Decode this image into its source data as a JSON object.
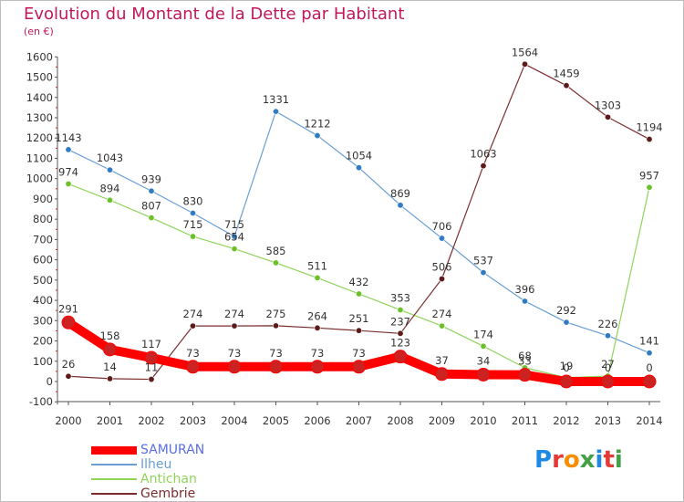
{
  "header": {
    "title": "Evolution du Montant de la Dette par Habitant",
    "unit": "(en €)"
  },
  "logo": {
    "text": "Proxiti",
    "letter_colors": [
      "#1e88e5",
      "#e53935",
      "#fb8c00",
      "#43a047",
      "#1e88e5",
      "#e53935",
      "#43a047"
    ]
  },
  "chart_data": {
    "type": "line",
    "title": "Evolution du Montant de la Dette par Habitant",
    "ylabel": "(en €)",
    "xlabel": "",
    "x": [
      "2000",
      "2001",
      "2002",
      "2003",
      "2004",
      "2005",
      "2006",
      "2007",
      "2008",
      "2009",
      "2010",
      "2011",
      "2012",
      "2013",
      "2014"
    ],
    "ylim": [
      -100,
      1600
    ],
    "yticks": [
      -100,
      0,
      100,
      200,
      300,
      400,
      500,
      600,
      700,
      800,
      900,
      1000,
      1100,
      1200,
      1300,
      1400,
      1500,
      1600
    ],
    "grid": false,
    "legend_position": "bottom-left",
    "series": [
      {
        "name": "SAMURAN",
        "color": "#ff0000",
        "values": [
          291,
          158,
          117,
          73,
          73,
          73,
          73,
          73,
          123,
          37,
          34,
          33,
          0,
          0,
          0
        ],
        "labels": [
          "291",
          "158",
          "117",
          "73",
          "73",
          "73",
          "73",
          "73",
          "123",
          "37",
          "34",
          "33",
          "0",
          "0",
          "0"
        ]
      },
      {
        "name": "Ilheu",
        "color": "#6a9fd4",
        "values": [
          1143,
          1043,
          939,
          830,
          715,
          1331,
          1212,
          1054,
          869,
          706,
          537,
          396,
          292,
          226,
          141
        ],
        "labels": [
          "1143",
          "1043",
          "939",
          "830",
          "715",
          "1331",
          "1212",
          "1054",
          "869",
          "706",
          "537",
          "396",
          "292",
          "226",
          "141"
        ]
      },
      {
        "name": "Antichan",
        "color": "#8fd45a",
        "values": [
          974,
          894,
          807,
          715,
          654,
          585,
          511,
          432,
          353,
          274,
          174,
          68,
          19,
          27,
          957
        ],
        "labels": [
          "974",
          "894",
          "807",
          "715",
          "654",
          "585",
          "511",
          "432",
          "353",
          "274",
          "174",
          "68",
          "19",
          "27",
          "957"
        ]
      },
      {
        "name": "Gembrie",
        "color": "#7b2d2d",
        "values": [
          26,
          14,
          11,
          274,
          274,
          275,
          264,
          251,
          237,
          506,
          1063,
          1564,
          1459,
          1303,
          1194
        ],
        "labels": [
          "26",
          "14",
          "11",
          "274",
          "274",
          "275",
          "264",
          "251",
          "237",
          "506",
          "1063",
          "1564",
          "1459",
          "1303",
          "1194"
        ]
      }
    ]
  }
}
